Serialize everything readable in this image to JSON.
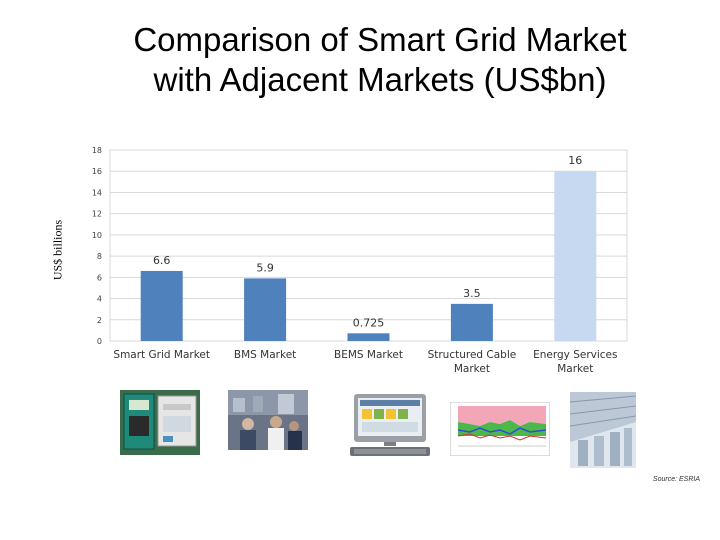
{
  "title_lines": [
    "Comparison of Smart Grid Market",
    "with Adjacent Markets (US$bn)"
  ],
  "source": "Source: ESRIA",
  "icons": [
    "smart-meter-image",
    "office-people-image",
    "bems-computer-image",
    "cable-chart-image",
    "building-energy-image"
  ],
  "chart_data": {
    "type": "bar",
    "title": "Comparison of Smart Grid Market with Adjacent Markets (US$bn)",
    "xlabel": "",
    "ylabel": "US$ billions",
    "ylim": [
      0,
      18
    ],
    "yticks": [
      0,
      2,
      4,
      6,
      8,
      10,
      12,
      14,
      16,
      18
    ],
    "grid": true,
    "legend": "none",
    "categories": [
      [
        "Smart Grid Market"
      ],
      [
        "BMS Market"
      ],
      [
        "BEMS Market"
      ],
      [
        "Structured Cable",
        "Market"
      ],
      [
        "Energy Services",
        "Market"
      ]
    ],
    "values": [
      6.6,
      5.9,
      0.725,
      3.5,
      16
    ],
    "data_labels": [
      "6.6",
      "5.9",
      "0.725",
      "3.5",
      "16"
    ],
    "colors": [
      "#4f81bd",
      "#4f81bd",
      "#4f81bd",
      "#4f81bd",
      "#c6d9f1"
    ]
  }
}
